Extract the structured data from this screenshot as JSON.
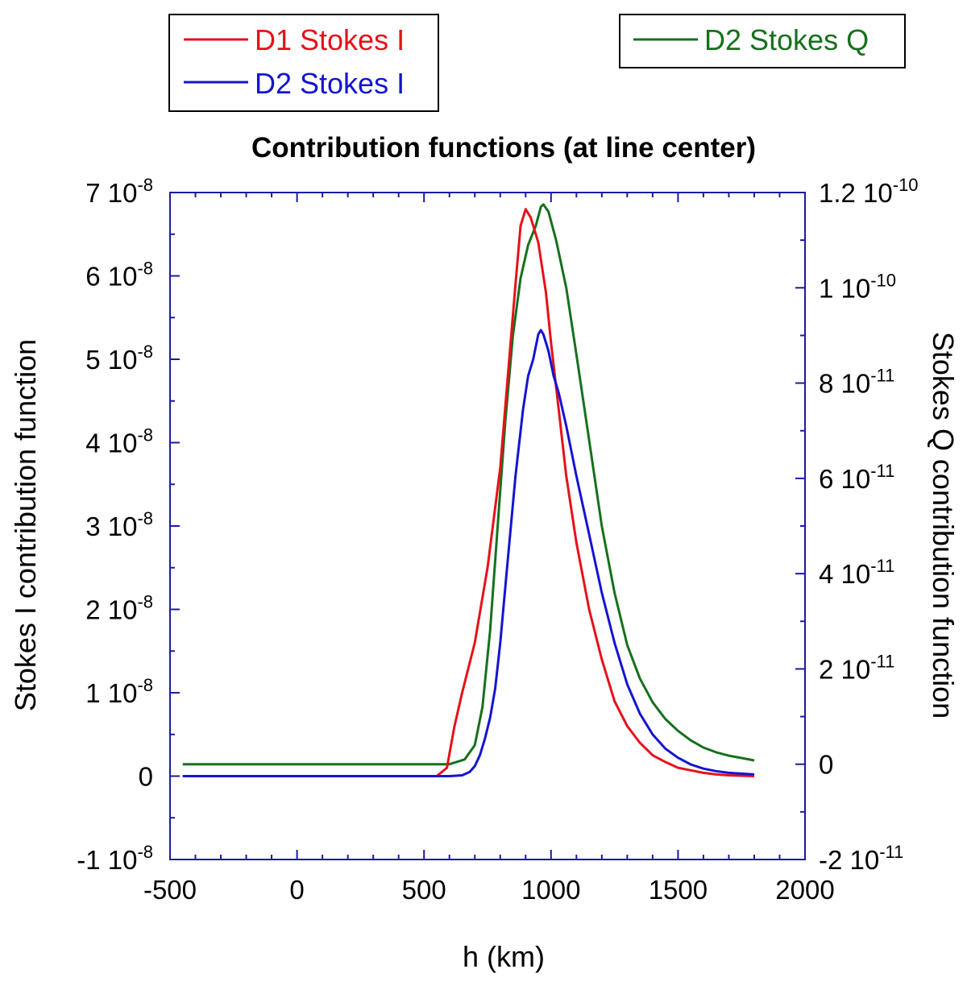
{
  "chart_data": {
    "type": "line",
    "title": "Contribution functions (at line center)",
    "xlabel": "h (km)",
    "ylabel_left": "Stokes I contribution function",
    "ylabel_right": "Stokes Q contribution function",
    "xlim": [
      -500,
      2000
    ],
    "ylim_left": [
      -1e-08,
      7e-08
    ],
    "ylim_right": [
      -2e-11,
      1.2e-10
    ],
    "x_ticks": [
      {
        "value": -500,
        "label": "-500"
      },
      {
        "value": 0,
        "label": "0"
      },
      {
        "value": 500,
        "label": "500"
      },
      {
        "value": 1000,
        "label": "1000"
      },
      {
        "value": 1500,
        "label": "1500"
      },
      {
        "value": 2000,
        "label": "2000"
      }
    ],
    "y_ticks_left": [
      {
        "value": -1e-08,
        "mant": "-1 10",
        "exp": "-8"
      },
      {
        "value": 0,
        "mant": "0",
        "exp": ""
      },
      {
        "value": 1e-08,
        "mant": "1 10",
        "exp": "-8"
      },
      {
        "value": 2e-08,
        "mant": "2 10",
        "exp": "-8"
      },
      {
        "value": 3e-08,
        "mant": "3 10",
        "exp": "-8"
      },
      {
        "value": 4e-08,
        "mant": "4 10",
        "exp": "-8"
      },
      {
        "value": 5e-08,
        "mant": "5 10",
        "exp": "-8"
      },
      {
        "value": 6e-08,
        "mant": "6 10",
        "exp": "-8"
      },
      {
        "value": 7e-08,
        "mant": "7 10",
        "exp": "-8"
      }
    ],
    "y_ticks_right": [
      {
        "value": -2e-11,
        "mant": "-2 10",
        "exp": "-11"
      },
      {
        "value": 0,
        "mant": "0",
        "exp": ""
      },
      {
        "value": 2e-11,
        "mant": "2 10",
        "exp": "-11"
      },
      {
        "value": 4e-11,
        "mant": "4 10",
        "exp": "-11"
      },
      {
        "value": 6e-11,
        "mant": "6 10",
        "exp": "-11"
      },
      {
        "value": 8e-11,
        "mant": "8 10",
        "exp": "-11"
      },
      {
        "value": 1e-10,
        "mant": "1 10",
        "exp": "-10"
      },
      {
        "value": 1.2e-10,
        "mant": "1.2 10",
        "exp": "-10"
      }
    ],
    "legends": [
      {
        "position": "top-left",
        "entries": [
          0,
          1
        ]
      },
      {
        "position": "top-right",
        "entries": [
          2
        ]
      }
    ],
    "series": [
      {
        "name": "D1 Stokes I",
        "axis": "left",
        "color": "#e8101a",
        "x": [
          -450,
          0,
          300,
          550,
          590,
          620,
          650,
          700,
          750,
          800,
          830,
          860,
          880,
          900,
          920,
          950,
          980,
          1000,
          1030,
          1060,
          1100,
          1150,
          1200,
          1250,
          1300,
          1350,
          1400,
          1450,
          1500,
          1550,
          1600,
          1650,
          1700,
          1750,
          1800
        ],
        "y": [
          0,
          0,
          0,
          0,
          1e-09,
          6e-09,
          1e-08,
          1.6e-08,
          2.5e-08,
          3.7e-08,
          4.8e-08,
          5.9e-08,
          6.6e-08,
          6.8e-08,
          6.7e-08,
          6.4e-08,
          5.8e-08,
          5.2e-08,
          4.4e-08,
          3.6e-08,
          2.8e-08,
          2e-08,
          1.4e-08,
          9e-09,
          6e-09,
          4e-09,
          2.5e-09,
          1.7e-09,
          1e-09,
          7e-10,
          4e-10,
          2e-10,
          1e-10,
          5e-11,
          0
        ]
      },
      {
        "name": "D2 Stokes I",
        "axis": "left",
        "color": "#1414d2",
        "x": [
          -450,
          0,
          300,
          600,
          650,
          680,
          700,
          720,
          740,
          760,
          780,
          800,
          830,
          860,
          890,
          910,
          930,
          950,
          960,
          970,
          990,
          1010,
          1030,
          1060,
          1100,
          1150,
          1200,
          1250,
          1300,
          1350,
          1400,
          1450,
          1500,
          1550,
          1600,
          1650,
          1700,
          1750,
          1800
        ],
        "y": [
          0,
          0,
          0,
          0,
          1e-10,
          5e-10,
          1.2e-09,
          2.5e-09,
          4.5e-09,
          7e-09,
          1.05e-08,
          1.6e-08,
          2.6e-08,
          3.6e-08,
          4.4e-08,
          4.8e-08,
          5e-08,
          5.3e-08,
          5.35e-08,
          5.3e-08,
          5.1e-08,
          4.8e-08,
          4.6e-08,
          4.2e-08,
          3.6e-08,
          2.9e-08,
          2.2e-08,
          1.6e-08,
          1.1e-08,
          7.5e-09,
          5e-09,
          3.3e-09,
          2.2e-09,
          1.4e-09,
          9e-10,
          6e-10,
          4e-10,
          3e-10,
          2e-10
        ]
      },
      {
        "name": "D2 Stokes Q",
        "axis": "right",
        "color": "#16701c",
        "x": [
          -450,
          0,
          300,
          600,
          660,
          700,
          730,
          760,
          790,
          820,
          850,
          880,
          910,
          940,
          960,
          970,
          990,
          1020,
          1060,
          1100,
          1150,
          1200,
          1250,
          1300,
          1350,
          1400,
          1450,
          1500,
          1550,
          1600,
          1650,
          1700,
          1750,
          1800
        ],
        "y": [
          0,
          0,
          0,
          0,
          1e-12,
          4e-12,
          1.2e-11,
          2.8e-11,
          5e-11,
          7.2e-11,
          9e-11,
          1.02e-10,
          1.09e-10,
          1.13e-10,
          1.17e-10,
          1.175e-10,
          1.16e-10,
          1.1e-10,
          1e-10,
          8.6e-11,
          6.8e-11,
          5e-11,
          3.6e-11,
          2.5e-11,
          1.8e-11,
          1.3e-11,
          9.5e-12,
          7e-12,
          5e-12,
          3.5e-12,
          2.5e-12,
          1.8e-12,
          1.3e-12,
          8e-13
        ]
      }
    ]
  }
}
